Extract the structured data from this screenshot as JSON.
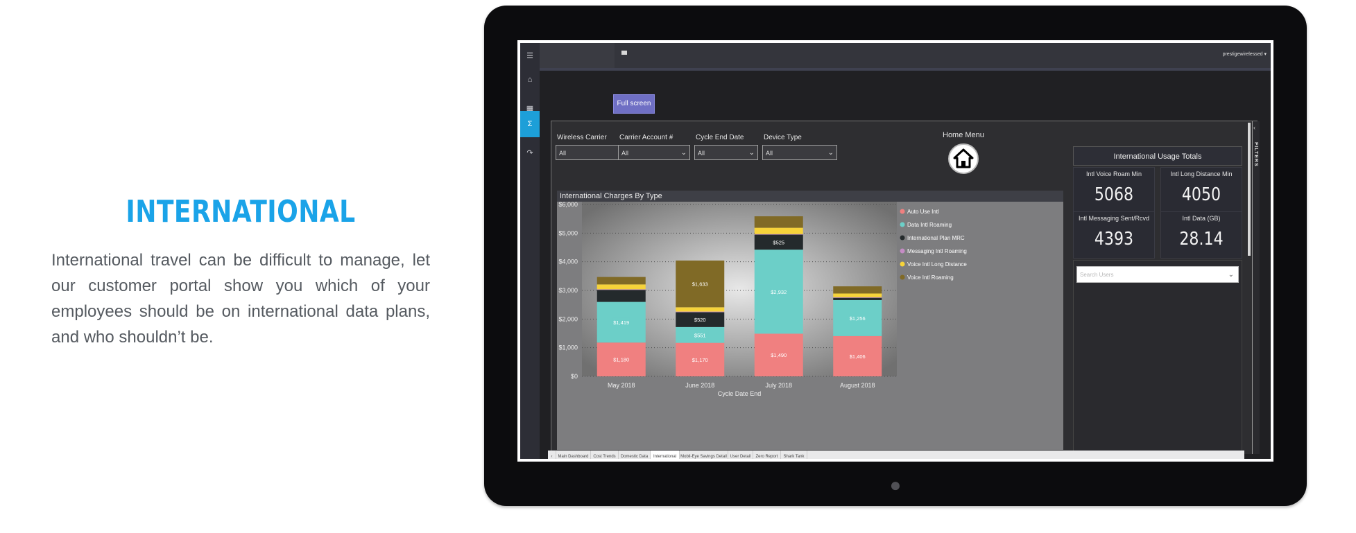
{
  "promo": {
    "title": "INTERNATIONAL",
    "body": "International travel can be difficult to manage, let our customer portal show you which of your employees should be on international data plans, and who shouldn’t be."
  },
  "topbar": {
    "user": "prestigewirelessed ▾"
  },
  "sidenav": {
    "items": [
      "menu-icon",
      "home-icon",
      "grid-icon",
      "sigma-icon",
      "logout-icon"
    ],
    "active": "sigma-icon"
  },
  "fullscreen_label": "Full screen",
  "filters": [
    {
      "label": "Wireless Carrier",
      "value": "All"
    },
    {
      "label": "Carrier Account #",
      "value": "All"
    },
    {
      "label": "Cycle End Date",
      "value": "All"
    },
    {
      "label": "Device Type",
      "value": "All"
    }
  ],
  "home_menu_label": "Home Menu",
  "chart_title": "International Charges By Type",
  "chart_data": {
    "type": "bar",
    "stacked": true,
    "title": "International Charges By Type",
    "xlabel": "Cycle Date End",
    "ylabel": "",
    "ylim": [
      0,
      6000
    ],
    "yticks": [
      "$0",
      "$1,000",
      "$2,000",
      "$3,000",
      "$4,000",
      "$5,000",
      "$6,000"
    ],
    "categories": [
      "May 2018",
      "June 2018",
      "July 2018",
      "August 2018"
    ],
    "legend_position": "right",
    "grid": true,
    "series": [
      {
        "name": "Auto Use Intl",
        "color": "#f08080",
        "values": [
          1180,
          1170,
          1490,
          1406
        ],
        "labels": [
          "$1,180",
          "$1,170",
          "$1,490",
          "$1,406"
        ]
      },
      {
        "name": "Data Intl Roaming",
        "color": "#6ccfc8",
        "values": [
          1419,
          551,
          2932,
          1256
        ],
        "labels": [
          "$1,419",
          "$551",
          "$2,932",
          "$1,256"
        ]
      },
      {
        "name": "International Plan MRC",
        "color": "#242a2c",
        "values": [
          420,
          520,
          525,
          80
        ],
        "labels": [
          "",
          "$520",
          "$525",
          ""
        ]
      },
      {
        "name": "Messaging Intl Roaming",
        "color": "#c58cc5",
        "values": [
          20,
          20,
          20,
          20
        ],
        "labels": [
          "",
          "",
          "",
          ""
        ]
      },
      {
        "name": "Voice Intl Long Distance",
        "color": "#f6d33a",
        "values": [
          170,
          150,
          220,
          130
        ],
        "labels": [
          "",
          "",
          "",
          ""
        ]
      },
      {
        "name": "Voice Intl Roaming",
        "color": "#806a26",
        "values": [
          260,
          1633,
          400,
          250
        ],
        "labels": [
          "",
          "$1,633",
          "",
          ""
        ]
      }
    ]
  },
  "kpi": {
    "title": "International Usage Totals",
    "cards": [
      {
        "label": "Intl Voice Roam Min",
        "value": "5068"
      },
      {
        "label": "Intl Long Distance Min",
        "value": "4050"
      },
      {
        "label": "Intl Messaging Sent/Rcvd",
        "value": "4393"
      },
      {
        "label": "Intl Data (GB)",
        "value": "28.14"
      }
    ]
  },
  "search_users_placeholder": "Search Users",
  "filters_rail_label": "FILTERS",
  "tabs": [
    "Main Dashboard",
    "Cost Trends",
    "Domestic Data",
    "International",
    "Mobil-Eye Savings Detail",
    "User Detail",
    "Zero Report",
    "Shark Tank"
  ],
  "active_tab": "International"
}
